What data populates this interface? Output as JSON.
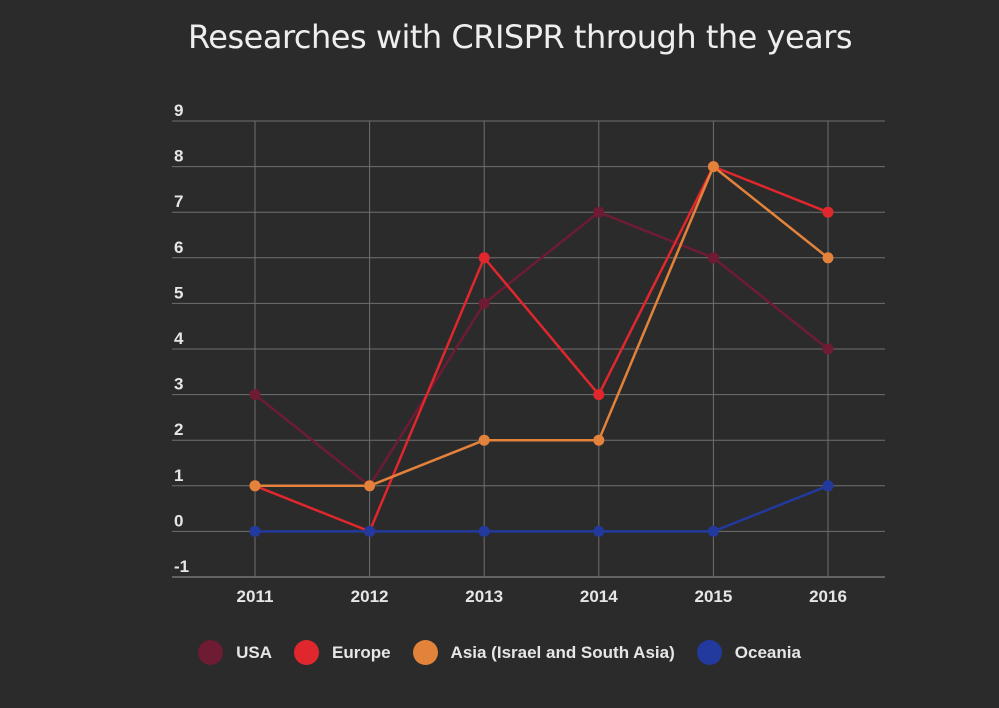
{
  "chart_data": {
    "type": "line",
    "title": "Researches with CRISPR through the years",
    "xlabel": "",
    "ylabel": "",
    "categories": [
      "2011",
      "2012",
      "2013",
      "2014",
      "2015",
      "2016"
    ],
    "ylim": [
      -1,
      9
    ],
    "y_ticks": [
      "-1",
      "0",
      "1",
      "2",
      "3",
      "4",
      "5",
      "6",
      "7",
      "8",
      "9"
    ],
    "grid": true,
    "legend_position": "bottom",
    "series": [
      {
        "name": "USA",
        "color": "#6e1b34",
        "values": [
          3,
          1,
          5,
          7,
          6,
          4
        ]
      },
      {
        "name": "Europe",
        "color": "#e0272d",
        "values": [
          1,
          0,
          6,
          3,
          8,
          7
        ]
      },
      {
        "name": "Asia (Israel and South Asia)",
        "color": "#e3823a",
        "values": [
          1,
          1,
          2,
          2,
          8,
          6
        ]
      },
      {
        "name": "Oceania",
        "color": "#22399e",
        "values": [
          0,
          0,
          0,
          0,
          0,
          1
        ]
      }
    ]
  }
}
